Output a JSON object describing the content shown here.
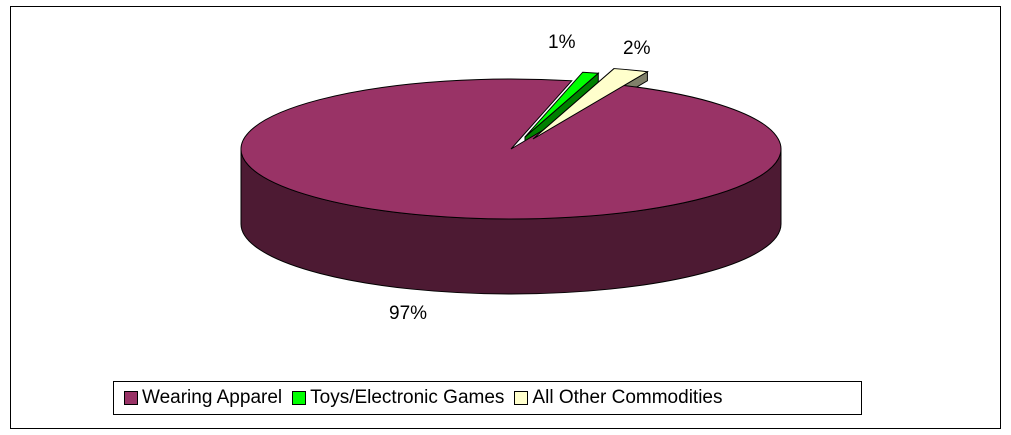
{
  "chart_data": {
    "type": "pie",
    "title": "",
    "categories": [
      "Wearing Apparel",
      "Toys/Electronic Games",
      "All Other Commodities"
    ],
    "values": [
      97,
      1,
      2
    ],
    "data_labels": [
      "97%",
      "1%",
      "2%"
    ],
    "colors": [
      "#993366",
      "#00ff00",
      "#ffffcc"
    ],
    "side_colors": [
      "#4d1a33",
      "#008000",
      "#80806a"
    ],
    "legend_position": "bottom",
    "style": "3d"
  }
}
